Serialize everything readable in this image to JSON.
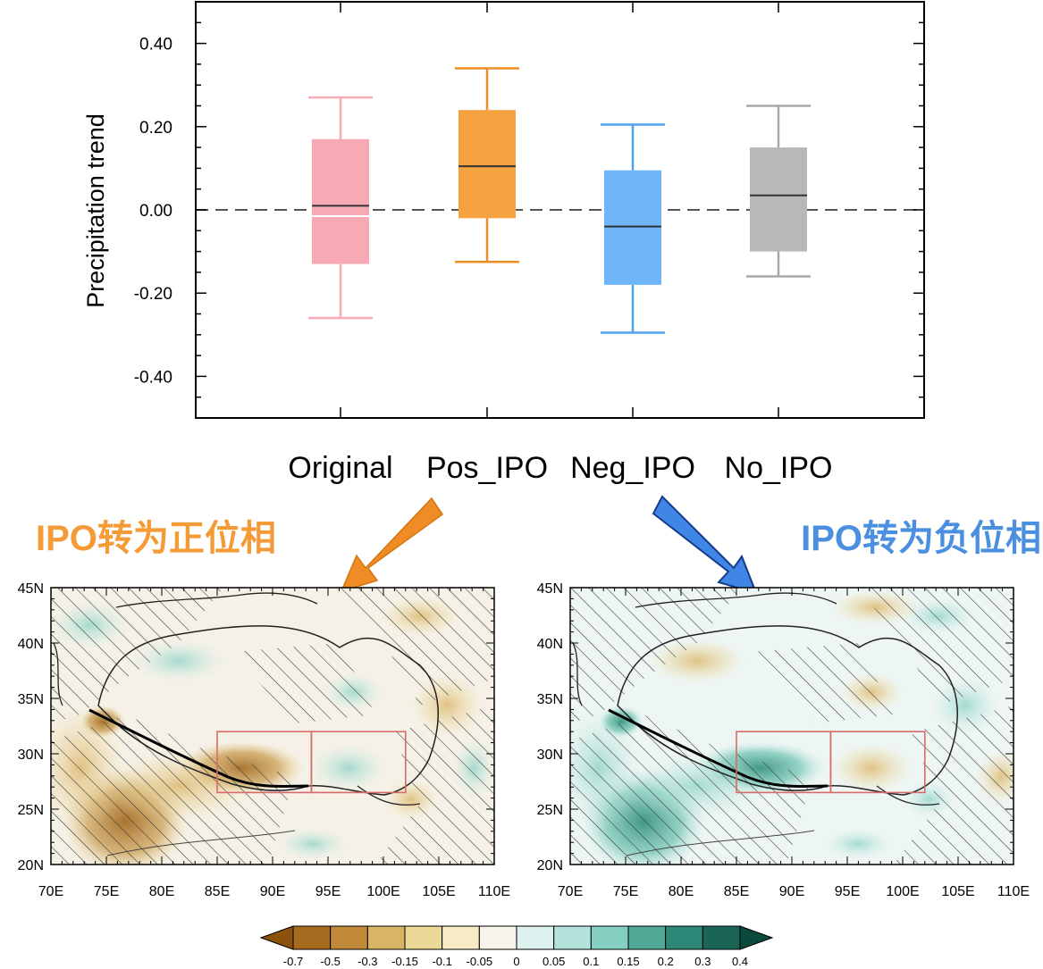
{
  "chart_data": [
    {
      "type": "box",
      "ylabel": "Precipitation trend",
      "ylim": [
        -0.5,
        0.5
      ],
      "yticks": [
        "0.40",
        "0.20",
        "0.00",
        "-0.20",
        "-0.40"
      ],
      "ytick_values": [
        0.4,
        0.2,
        0.0,
        -0.2,
        -0.4
      ],
      "zero_line": "dashed",
      "categories": [
        "Original",
        "Pos_IPO",
        "Neg_IPO",
        "No_IPO"
      ],
      "boxes": [
        {
          "category": "Original",
          "whisker_low": -0.26,
          "q1": -0.13,
          "median": 0.01,
          "mean": -0.015,
          "q3": 0.17,
          "whisker_high": 0.27,
          "color": "#f7a9b4",
          "whisker_color": "#f7a9b4"
        },
        {
          "category": "Pos_IPO",
          "whisker_low": -0.125,
          "q1": -0.02,
          "median": 0.105,
          "q3": 0.24,
          "whisker_high": 0.34,
          "color": "#f7a240",
          "whisker_color": "#f08c25"
        },
        {
          "category": "Neg_IPO",
          "whisker_low": -0.295,
          "q1": -0.18,
          "median": -0.04,
          "q3": 0.095,
          "whisker_high": 0.205,
          "color": "#6eb6f7",
          "whisker_color": "#4ea3f0"
        },
        {
          "category": "No_IPO",
          "whisker_low": -0.16,
          "q1": -0.1,
          "median": 0.035,
          "q3": 0.15,
          "whisker_high": 0.25,
          "color": "#b8b8b8",
          "whisker_color": "#a8a8a8"
        }
      ]
    },
    {
      "type": "map",
      "title": "IPO转为正位相",
      "title_color": "#f49a36",
      "arrow_color": "#f08c25",
      "xticks": [
        "70E",
        "75E",
        "80E",
        "85E",
        "90E",
        "95E",
        "100E",
        "105E",
        "110E"
      ],
      "yticks": [
        "45N",
        "40N",
        "35N",
        "30N",
        "25N",
        "20N"
      ],
      "xlim": [
        70,
        110
      ],
      "ylim": [
        20,
        45
      ],
      "boxes": [
        {
          "lon": [
            85,
            93.5
          ],
          "lat": [
            26.5,
            32
          ]
        },
        {
          "lon": [
            93.5,
            102
          ],
          "lat": [
            26.5,
            32
          ]
        }
      ]
    },
    {
      "type": "map",
      "title": "IPO转为负位相",
      "title_color": "#4a8fe0",
      "arrow_color": "#3f86e6",
      "xticks": [
        "70E",
        "75E",
        "80E",
        "85E",
        "90E",
        "95E",
        "100E",
        "105E",
        "110E"
      ],
      "yticks": [
        "45N",
        "40N",
        "35N",
        "30N",
        "25N",
        "20N"
      ],
      "xlim": [
        70,
        110
      ],
      "ylim": [
        20,
        45
      ],
      "boxes": [
        {
          "lon": [
            85,
            93.5
          ],
          "lat": [
            26.5,
            32
          ]
        },
        {
          "lon": [
            93.5,
            102
          ],
          "lat": [
            26.5,
            32
          ]
        }
      ]
    },
    {
      "type": "colorbar",
      "labels": [
        "-0.7",
        "-0.5",
        "-0.3",
        "-0.15",
        "-0.1",
        "-0.05",
        "0",
        "0.05",
        "0.1",
        "0.15",
        "0.2",
        "0.3",
        "0.4"
      ],
      "colors": [
        "#8c510a",
        "#a66a1e",
        "#c08a3a",
        "#d8b566",
        "#ebd796",
        "#f6ebc6",
        "#f5f3ea",
        "#ddf1ef",
        "#b4e3dc",
        "#84cfc1",
        "#4fa996",
        "#2d8776",
        "#1a6556",
        "#0a4a3c"
      ]
    }
  ]
}
